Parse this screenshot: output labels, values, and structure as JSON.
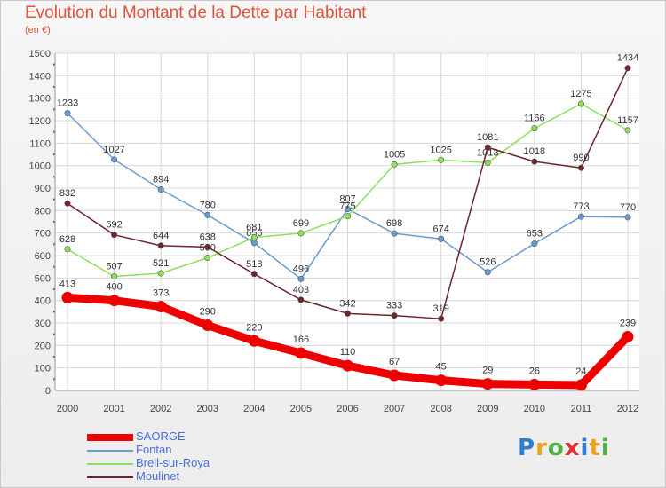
{
  "chart_data": {
    "type": "line",
    "title": "Evolution du Montant de la Dette par Habitant",
    "subtitle": "(en €)",
    "categories": [
      "2000",
      "2001",
      "2002",
      "2003",
      "2004",
      "2005",
      "2006",
      "2007",
      "2008",
      "2009",
      "2010",
      "2011",
      "2012"
    ],
    "ylim": [
      0,
      1500
    ],
    "yticks": [
      0,
      100,
      200,
      300,
      400,
      500,
      600,
      700,
      800,
      900,
      1000,
      1100,
      1200,
      1300,
      1400,
      1500
    ],
    "grid": true,
    "legend_position": "bottom-left",
    "series": [
      {
        "name": "Fontan",
        "color": "#6a9bd0",
        "values": [
          1233,
          1027,
          894,
          780,
          656,
          496,
          807,
          698,
          674,
          526,
          653,
          773,
          770
        ]
      },
      {
        "name": "Breil-sur-Roya",
        "color": "#8ee05a",
        "values": [
          628,
          507,
          521,
          590,
          681,
          699,
          775,
          1005,
          1025,
          1013,
          1166,
          1275,
          1157
        ]
      },
      {
        "name": "Moulinet",
        "color": "#6e2428",
        "values": [
          832,
          692,
          644,
          638,
          518,
          403,
          342,
          333,
          319,
          1081,
          1018,
          990,
          1434
        ]
      },
      {
        "name": "SAORGE",
        "color": "#ee0000",
        "values": [
          413,
          400,
          373,
          290,
          220,
          166,
          110,
          67,
          45,
          29,
          26,
          24,
          239
        ]
      }
    ],
    "legend_order": [
      "SAORGE",
      "Fontan",
      "Breil-sur-Roya",
      "Moulinet"
    ]
  },
  "logo": {
    "letters": [
      "P",
      "r",
      "o",
      "x",
      "i",
      "t",
      "i"
    ],
    "colors": [
      "#2f7fd0",
      "#f0a020",
      "#50b040",
      "#e03030",
      "#2f7fd0",
      "#f0a020",
      "#50b040"
    ]
  }
}
